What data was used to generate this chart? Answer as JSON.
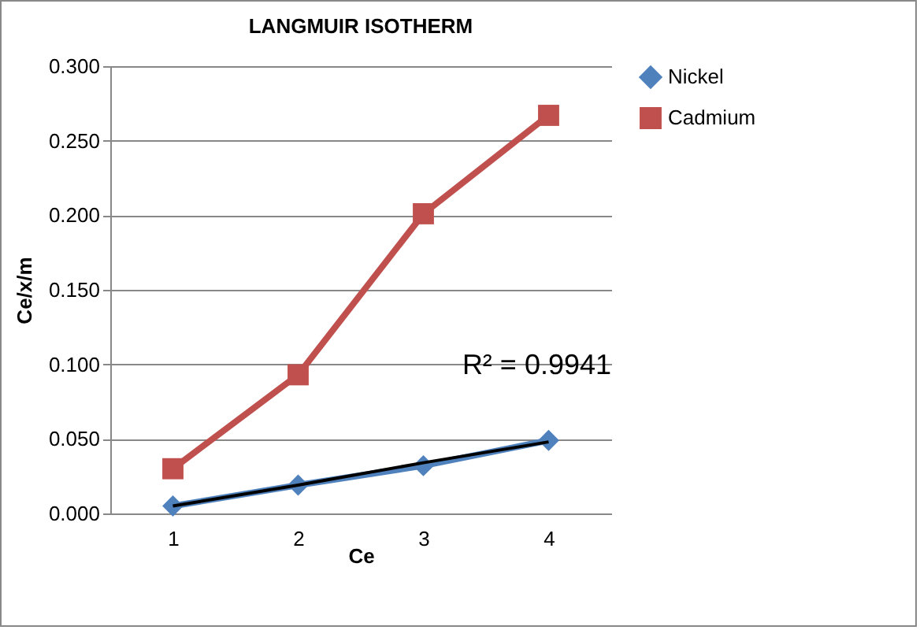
{
  "chart_data": {
    "type": "line",
    "title": "LANGMUIR ISOTHERM",
    "xlabel": "Ce",
    "ylabel": "Ce/x/m",
    "categories": [
      "1",
      "2",
      "3",
      "4"
    ],
    "series": [
      {
        "name": "Nickel",
        "color": "#4f81bd",
        "marker": "diamond",
        "values": [
          0.005,
          0.019,
          0.032,
          0.049
        ]
      },
      {
        "name": "Cadmium",
        "color": "#c0504d",
        "marker": "square",
        "values": [
          0.03,
          0.093,
          0.201,
          0.267
        ]
      },
      {
        "type": "line",
        "color": "#000000",
        "marker": "none",
        "values": [
          0.005,
          0.019,
          0.034,
          0.048
        ]
      }
    ],
    "ylim": [
      0,
      0.3
    ],
    "yticks": [
      {
        "value": 0,
        "label": "0.000"
      },
      {
        "value": 0.05,
        "label": "0.050"
      },
      {
        "value": 0.1,
        "label": "0.100"
      },
      {
        "value": 0.15,
        "label": "0.150"
      },
      {
        "value": 0.2,
        "label": "0.200"
      },
      {
        "value": 0.25,
        "label": "0.250"
      },
      {
        "value": 0.3,
        "label": "0.300"
      }
    ],
    "grid": "y",
    "legend": "right",
    "annotations": [
      "R² = 0.9941"
    ]
  }
}
